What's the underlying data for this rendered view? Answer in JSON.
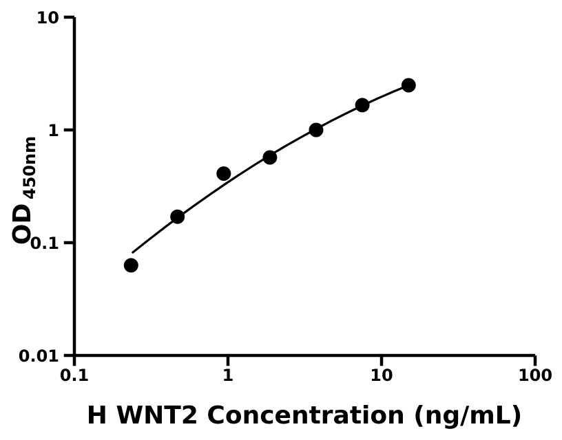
{
  "figure": {
    "background": "#ffffff",
    "foreground": "#000000"
  },
  "chart_data": {
    "type": "scatter",
    "title": "",
    "xlabel": "H WNT2 Concentration (ng/mL)",
    "ylabel_main": "OD",
    "ylabel_sub": "450nm",
    "x_scale": "log10",
    "y_scale": "log10",
    "xlim": [
      0.1,
      100
    ],
    "ylim": [
      0.01,
      10
    ],
    "grid": false,
    "legend": false,
    "x_ticks": {
      "values": [
        0.1,
        1,
        10,
        100
      ],
      "labels": [
        "0.1",
        "1",
        "10",
        "100"
      ]
    },
    "y_ticks": {
      "values": [
        10,
        1,
        0.1,
        0.01
      ],
      "labels": [
        "10",
        "1",
        "0.1",
        "0.01"
      ]
    },
    "colors": {
      "axis": "#000000",
      "marker": "#000000",
      "curve": "#000000",
      "background": "#ffffff"
    },
    "series": [
      {
        "name": "standard-points",
        "type": "scatter",
        "marker": "filled-circle",
        "x": [
          0.234,
          0.469,
          0.938,
          1.875,
          3.75,
          7.5,
          15
        ],
        "y": [
          0.063,
          0.17,
          0.41,
          0.57,
          1.0,
          1.66,
          2.49
        ]
      },
      {
        "name": "fitted-curve",
        "type": "line",
        "x": [
          0.24,
          0.302,
          0.38,
          0.479,
          0.603,
          0.759,
          0.955,
          1.202,
          1.514,
          1.905,
          2.399,
          3.02,
          3.802,
          4.786,
          6.026,
          7.586,
          9.55,
          12.02,
          15.0
        ],
        "y": [
          0.082,
          0.105,
          0.134,
          0.17,
          0.213,
          0.266,
          0.33,
          0.406,
          0.497,
          0.603,
          0.726,
          0.868,
          1.032,
          1.217,
          1.425,
          1.658,
          1.915,
          2.196,
          2.488
        ]
      }
    ]
  }
}
